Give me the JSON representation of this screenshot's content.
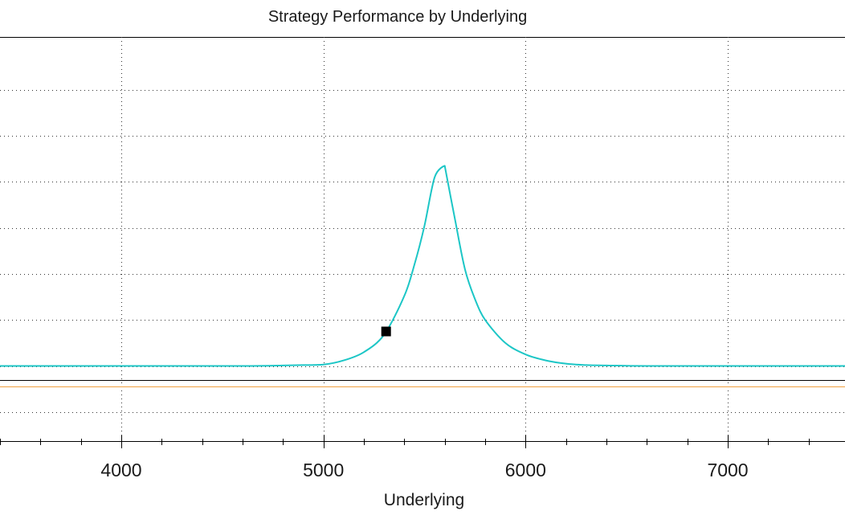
{
  "chart_data": {
    "type": "line",
    "title": "Strategy Performance by Underlying",
    "xlabel": "Underlying",
    "ylabel": "",
    "xlim": [
      3400,
      7580
    ],
    "ylim": [
      -1.65,
      7.15
    ],
    "x_ticks": [
      4000,
      5000,
      6000,
      7000
    ],
    "x_tick_labels": [
      "4000",
      "5000",
      "6000",
      "7000"
    ],
    "x_minor_step": 200,
    "y_gridlines": [
      -1,
      0,
      1,
      2,
      3,
      4,
      5,
      6
    ],
    "grid": true,
    "grid_style": "dotted",
    "baseline_y": -0.3,
    "orange_line_y": -0.45,
    "series": [
      {
        "color": "#1cc6c6",
        "x": [
          3400,
          3800,
          4200,
          4600,
          4800,
          4900,
          5000,
          5100,
          5200,
          5300,
          5400,
          5450,
          5500,
          5550,
          5600,
          5650,
          5700,
          5750,
          5800,
          5900,
          6000,
          6100,
          6200,
          6300,
          6400,
          6600,
          7000,
          7580
        ],
        "y": [
          0.0,
          0.0,
          0.0,
          0.0,
          0.01,
          0.02,
          0.03,
          0.12,
          0.3,
          0.68,
          1.52,
          2.2,
          3.05,
          4.1,
          4.35,
          3.2,
          2.1,
          1.45,
          1.0,
          0.5,
          0.25,
          0.12,
          0.05,
          0.02,
          0.01,
          0.0,
          0.0,
          0.0
        ]
      }
    ],
    "marker": {
      "x": 5310,
      "y": 0.75,
      "color": "#000000"
    },
    "colors": {
      "line": "#1cc6c6",
      "baseline": "#000000",
      "orange_line": "#f0a040",
      "grid": "#333333",
      "marker": "#000000"
    }
  }
}
